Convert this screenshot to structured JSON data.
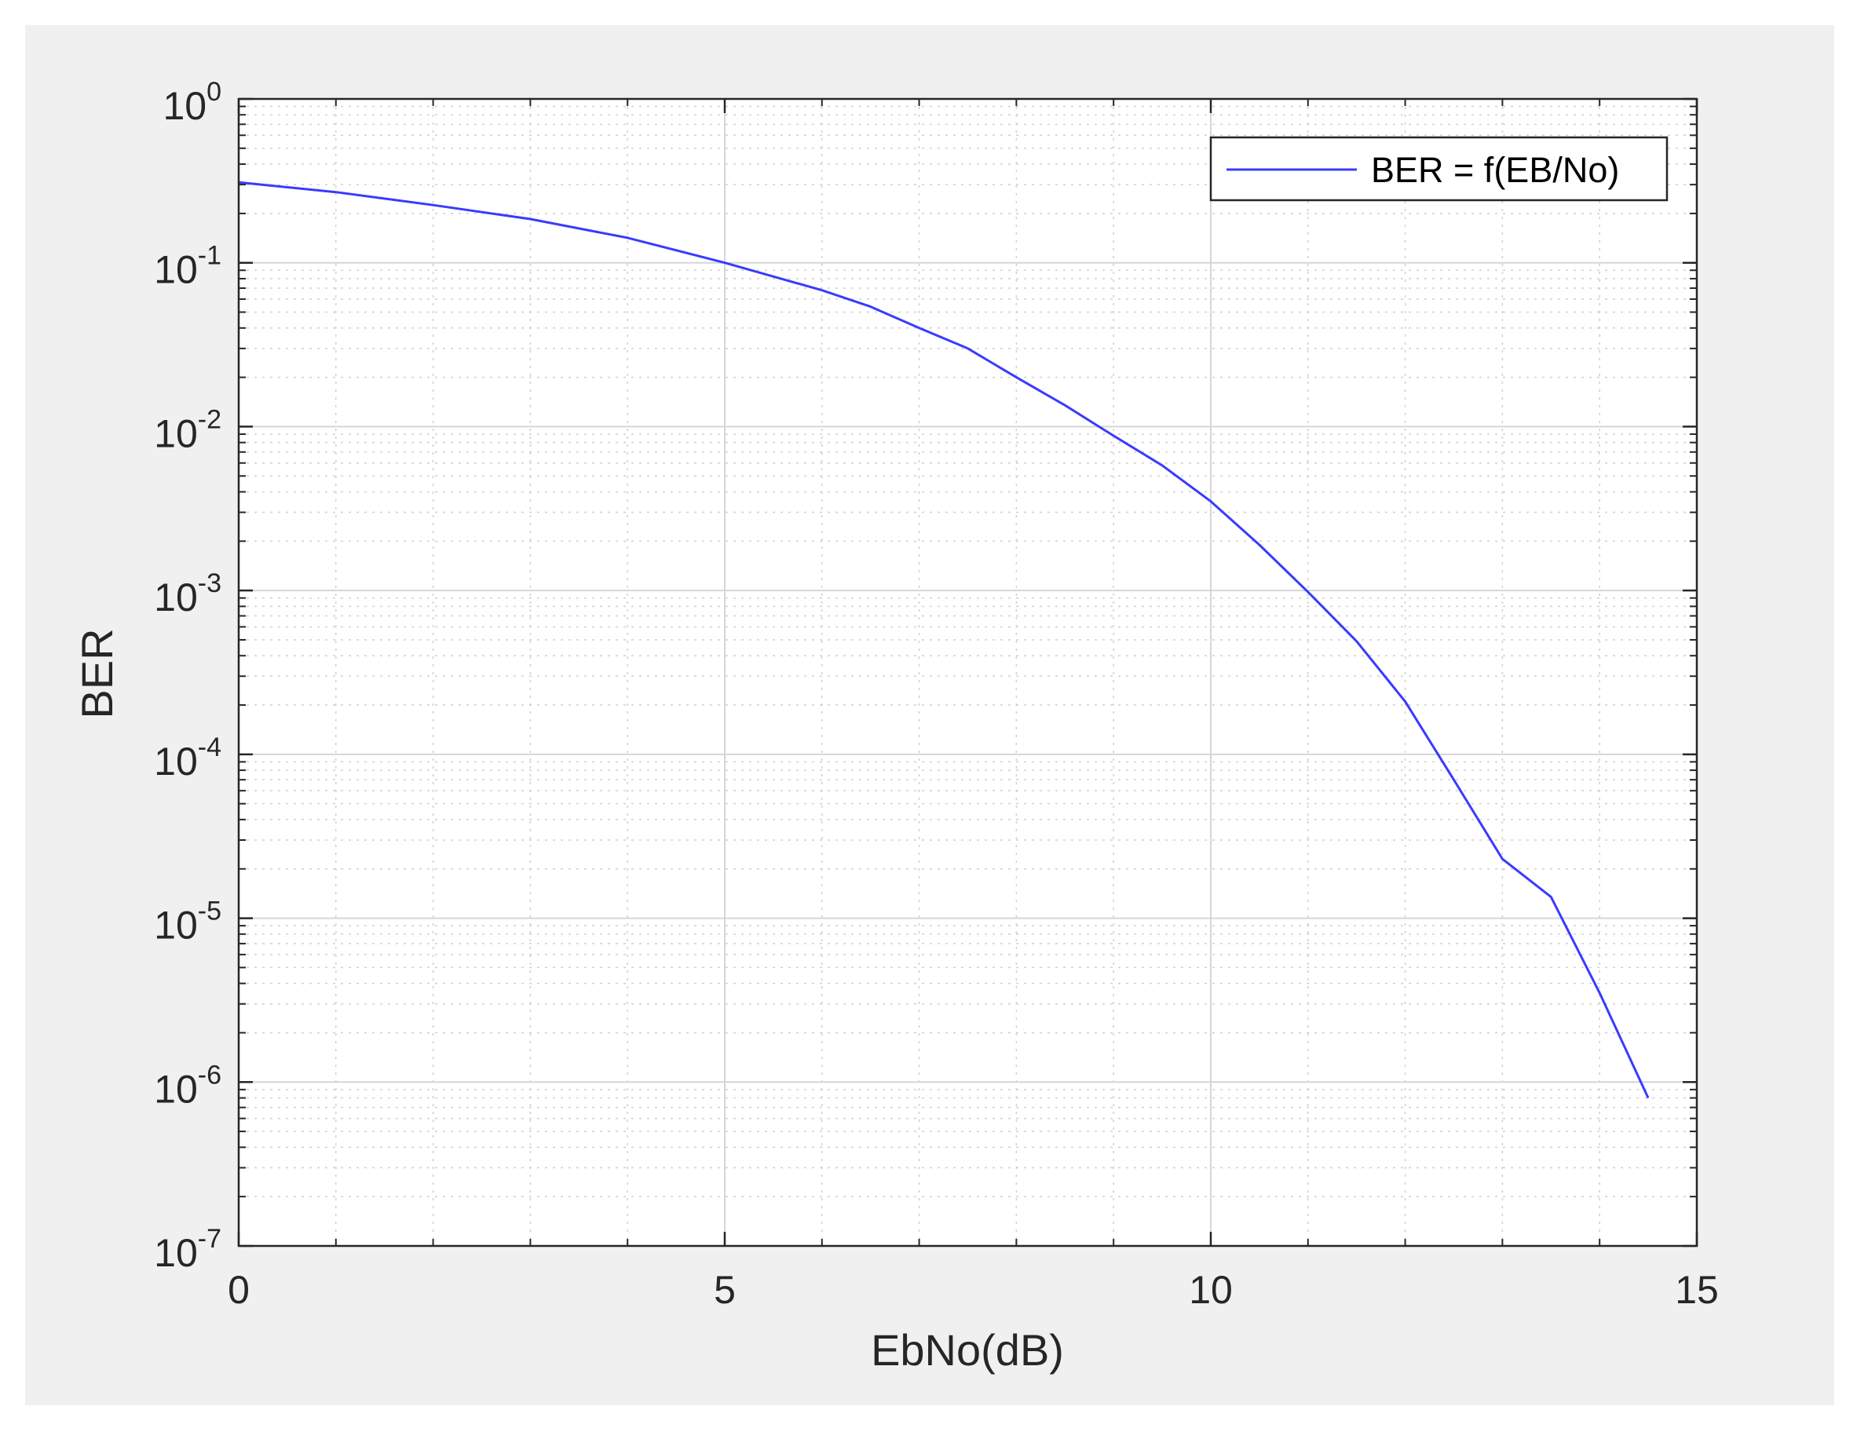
{
  "chart_data": {
    "type": "line",
    "title": "",
    "xlabel": "EbNo(dB)",
    "ylabel": "BER",
    "xlim": [
      0,
      15
    ],
    "ylim": [
      1e-07,
      1
    ],
    "y_scale": "log",
    "grid": true,
    "minor_grid": true,
    "legend_position": "top-right",
    "x_ticks": [
      {
        "value": 0,
        "label": "0"
      },
      {
        "value": 5,
        "label": "5"
      },
      {
        "value": 10,
        "label": "10"
      },
      {
        "value": 15,
        "label": "15"
      }
    ],
    "y_ticks": [
      {
        "value": 1,
        "base": "10",
        "exp": "0"
      },
      {
        "value": 0.1,
        "base": "10",
        "exp": "-1"
      },
      {
        "value": 0.01,
        "base": "10",
        "exp": "-2"
      },
      {
        "value": 0.001,
        "base": "10",
        "exp": "-3"
      },
      {
        "value": 0.0001,
        "base": "10",
        "exp": "-4"
      },
      {
        "value": 1e-05,
        "base": "10",
        "exp": "-5"
      },
      {
        "value": 1e-06,
        "base": "10",
        "exp": "-6"
      },
      {
        "value": 1e-07,
        "base": "10",
        "exp": "-7"
      }
    ],
    "series": [
      {
        "name": "BER = f(EB/No)",
        "color": "#3a3aff",
        "x": [
          0,
          1,
          2,
          3,
          4,
          5,
          6,
          6.5,
          7,
          7.5,
          8,
          8.5,
          9,
          9.5,
          10,
          10.5,
          11,
          11.5,
          12,
          12.5,
          13,
          13.5,
          14,
          14.5
        ],
        "y": [
          0.31,
          0.27,
          0.225,
          0.185,
          0.142,
          0.1,
          0.068,
          0.054,
          0.04,
          0.03,
          0.02,
          0.0135,
          0.0088,
          0.0058,
          0.0035,
          0.0019,
          0.00098,
          0.00049,
          0.00021,
          7e-05,
          2.3e-05,
          1.35e-05,
          3.5e-06,
          8e-07
        ]
      }
    ]
  }
}
